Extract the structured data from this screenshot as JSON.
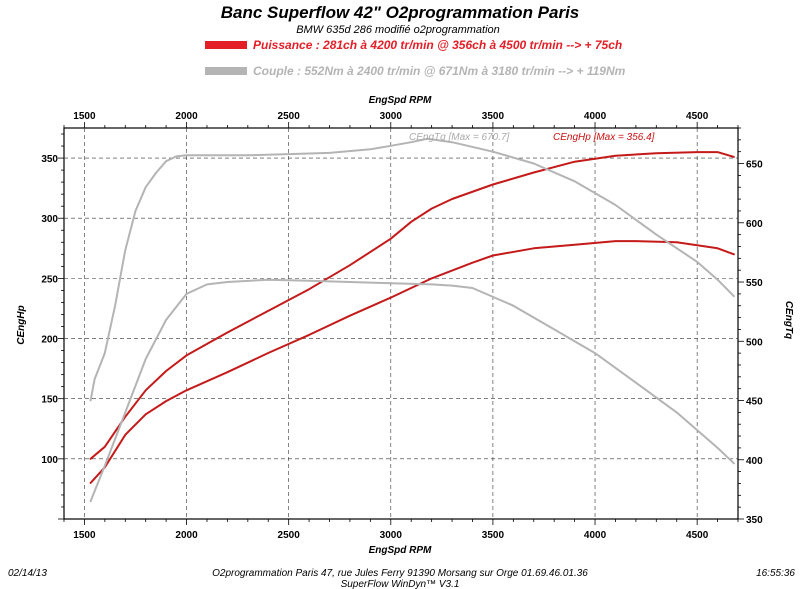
{
  "chart_data": {
    "type": "line",
    "title": "Banc Superflow 42\" O2programmation Paris",
    "subtitle": "BMW 635d 286 modifié o2programmation",
    "legend": [
      {
        "text": "Puissance : 281ch à 4200 tr/min @ 356ch à 4500 tr/min --> + 75ch",
        "color": "#e41e26"
      },
      {
        "text": "Couple : 552Nm à 2400 tr/min @ 671Nm à 3180 tr/min --> + 119Nm",
        "color": "#b4b4b4"
      }
    ],
    "xlabel_top": "EngSpd RPM",
    "xlabel_bottom": "EngSpd RPM",
    "ylabel_left": "CEngHp",
    "ylabel_right": "CEngTq",
    "xlim": [
      1400,
      4700
    ],
    "ylim_left": [
      50,
      375
    ],
    "ylim_right": [
      350,
      680
    ],
    "x_ticks": [
      1500,
      2000,
      2500,
      3000,
      3500,
      4000,
      4500
    ],
    "y_left_ticks": [
      100,
      150,
      200,
      250,
      300,
      350
    ],
    "y_right_ticks": [
      350,
      400,
      450,
      500,
      550,
      600,
      650
    ],
    "annotations": [
      {
        "text": "CEngTq [Max = 670.7]",
        "color": "#aaaaaa"
      },
      {
        "text": "CEngHp [Max = 356.4]",
        "color": "#cc1111"
      }
    ],
    "series": [
      {
        "axis": "left",
        "color": "#c41a1a",
        "x": [
          1530,
          1600,
          1700,
          1800,
          1900,
          2000,
          2200,
          2400,
          2600,
          2800,
          3000,
          3100,
          3200,
          3300,
          3500,
          3700,
          3900,
          4100,
          4300,
          4500,
          4600,
          4680
        ],
        "y": [
          100,
          110,
          135,
          157,
          173,
          186,
          205,
          223,
          241,
          261,
          283,
          297,
          308,
          316,
          328,
          338,
          347,
          352,
          354,
          355,
          355,
          351
        ]
      },
      {
        "axis": "left",
        "color": "#c41a1a",
        "x": [
          1530,
          1600,
          1700,
          1800,
          1900,
          2000,
          2200,
          2400,
          2600,
          2800,
          3000,
          3200,
          3400,
          3500,
          3700,
          3900,
          4100,
          4200,
          4400,
          4600,
          4680
        ],
        "y": [
          80,
          93,
          120,
          137,
          148,
          157,
          172,
          188,
          203,
          219,
          234,
          250,
          263,
          269,
          275,
          278,
          281,
          281,
          280,
          275,
          270
        ]
      },
      {
        "axis": "right",
        "color": "#b4b4b4",
        "x": [
          1530,
          1550,
          1600,
          1650,
          1700,
          1750,
          1800,
          1850,
          1900,
          1950,
          2000,
          2100,
          2300,
          2500,
          2700,
          2900,
          3000,
          3100,
          3180,
          3300,
          3500,
          3700,
          3900,
          4100,
          4300,
          4500,
          4600,
          4680
        ],
        "y": [
          450,
          468,
          490,
          530,
          577,
          610,
          630,
          642,
          652,
          656,
          657,
          657,
          657,
          658,
          659,
          662,
          665,
          668,
          671,
          668,
          660,
          650,
          635,
          615,
          590,
          567,
          552,
          538
        ]
      },
      {
        "axis": "right",
        "color": "#b4b4b4",
        "x": [
          1530,
          1600,
          1700,
          1800,
          1900,
          2000,
          2100,
          2200,
          2400,
          2600,
          2800,
          3000,
          3200,
          3300,
          3400,
          3600,
          3800,
          4000,
          4200,
          4400,
          4600,
          4680
        ],
        "y": [
          365,
          395,
          440,
          485,
          518,
          540,
          548,
          550,
          552,
          551,
          550,
          549,
          548,
          547,
          545,
          530,
          510,
          490,
          465,
          440,
          410,
          397
        ]
      }
    ]
  },
  "footer": {
    "date": "02/14/13",
    "company": "O2programmation Paris 47, rue Jules Ferry 91390 Morsang sur Orge 01.69.46.01.36",
    "software": "SuperFlow WinDyn™ V3.1",
    "time": "16:55:36"
  }
}
